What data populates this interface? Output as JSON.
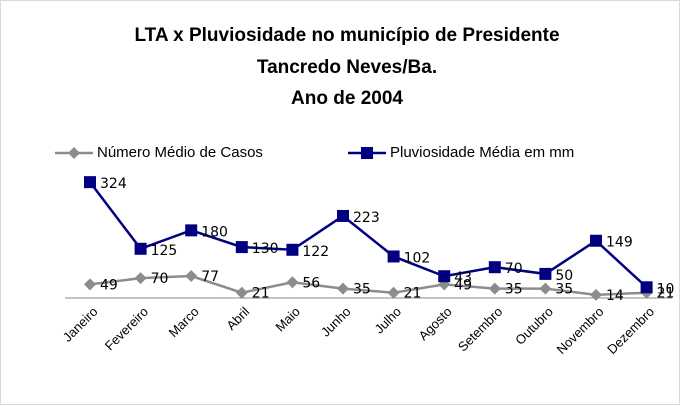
{
  "chart_data": {
    "type": "line",
    "title": [
      "LTA x Pluviosidade no município de Presidente",
      "Tancredo Neves/Ba.",
      "Ano de 2004"
    ],
    "categories": [
      "Janeiro",
      "Fevereiro",
      "Marco",
      "Abril",
      "Maio",
      "Junho",
      "Julho",
      "Agosto",
      "Setembro",
      "Outubro",
      "Novembro",
      "Dezembro"
    ],
    "series": [
      {
        "name": "Número  Médio de Casos",
        "color": "#8c8c8c",
        "marker": "diamond",
        "values": [
          49,
          70,
          77,
          21,
          56,
          35,
          21,
          49,
          35,
          35,
          14,
          21
        ]
      },
      {
        "name": "Pluviosidade Média em mm",
        "color": "#000080",
        "marker": "square",
        "axis": "y2",
        "values": [
          324,
          125,
          180,
          130,
          122,
          223,
          102,
          43,
          70,
          50,
          149,
          10
        ]
      }
    ],
    "ylim": [
      0,
      500
    ],
    "y2lim": [
      -25,
      420
    ],
    "legend": "top"
  }
}
